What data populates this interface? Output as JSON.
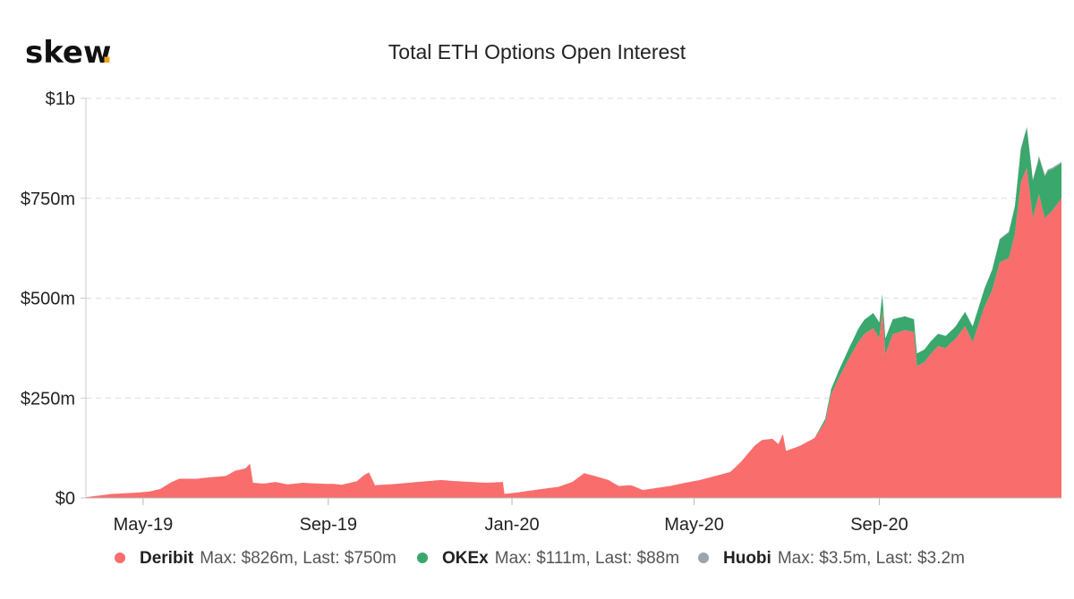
{
  "brand": {
    "name": "skew",
    "dot": ".",
    "dot_color": "#f0a020"
  },
  "chart_data": {
    "type": "area",
    "title": "Total ETH Options Open Interest",
    "xlabel": "",
    "ylabel": "",
    "y_unit": "USD millions",
    "ylim": [
      0,
      1000
    ],
    "grid": true,
    "legend_position": "bottom",
    "y_ticks": [
      {
        "value": 0,
        "label": "$0"
      },
      {
        "value": 250,
        "label": "$250m"
      },
      {
        "value": 500,
        "label": "$500m"
      },
      {
        "value": 750,
        "label": "$750m"
      },
      {
        "value": 1000,
        "label": "$1b"
      }
    ],
    "x_range": [
      "2019-03-24",
      "2020-12-31"
    ],
    "x_ticks": [
      {
        "date": "2019-05-01",
        "label": "May-19"
      },
      {
        "date": "2019-09-01",
        "label": "Sep-19"
      },
      {
        "date": "2020-01-01",
        "label": "Jan-20"
      },
      {
        "date": "2020-05-01",
        "label": "May-20"
      },
      {
        "date": "2020-09-01",
        "label": "Sep-20"
      }
    ],
    "series": [
      {
        "name": "Deribit",
        "color": "#f96d6d",
        "stats": "Max: $826m, Last: $750m",
        "points": [
          [
            "2019-03-24",
            2
          ],
          [
            "2019-04-10",
            10
          ],
          [
            "2019-04-25",
            13
          ],
          [
            "2019-05-05",
            16
          ],
          [
            "2019-05-12",
            22
          ],
          [
            "2019-05-20",
            40
          ],
          [
            "2019-05-25",
            48
          ],
          [
            "2019-06-05",
            48
          ],
          [
            "2019-06-15",
            52
          ],
          [
            "2019-06-25",
            55
          ],
          [
            "2019-07-01",
            68
          ],
          [
            "2019-07-08",
            74
          ],
          [
            "2019-07-11",
            86
          ],
          [
            "2019-07-13",
            38
          ],
          [
            "2019-07-20",
            36
          ],
          [
            "2019-07-28",
            40
          ],
          [
            "2019-08-05",
            34
          ],
          [
            "2019-08-15",
            38
          ],
          [
            "2019-08-25",
            36
          ],
          [
            "2019-09-05",
            35
          ],
          [
            "2019-09-10",
            33
          ],
          [
            "2019-09-20",
            42
          ],
          [
            "2019-09-25",
            58
          ],
          [
            "2019-09-28",
            64
          ],
          [
            "2019-10-02",
            32
          ],
          [
            "2019-10-15",
            35
          ],
          [
            "2019-10-30",
            40
          ],
          [
            "2019-11-15",
            45
          ],
          [
            "2019-11-25",
            42
          ],
          [
            "2019-12-05",
            40
          ],
          [
            "2019-12-15",
            38
          ],
          [
            "2019-12-26",
            40
          ],
          [
            "2019-12-27",
            10
          ],
          [
            "2020-01-05",
            14
          ],
          [
            "2020-01-20",
            22
          ],
          [
            "2020-02-01",
            28
          ],
          [
            "2020-02-10",
            40
          ],
          [
            "2020-02-18",
            62
          ],
          [
            "2020-02-25",
            55
          ],
          [
            "2020-03-05",
            45
          ],
          [
            "2020-03-12",
            30
          ],
          [
            "2020-03-20",
            32
          ],
          [
            "2020-03-28",
            20
          ],
          [
            "2020-04-15",
            30
          ],
          [
            "2020-04-25",
            38
          ],
          [
            "2020-05-05",
            45
          ],
          [
            "2020-05-15",
            55
          ],
          [
            "2020-05-25",
            65
          ],
          [
            "2020-06-01",
            90
          ],
          [
            "2020-06-10",
            130
          ],
          [
            "2020-06-15",
            145
          ],
          [
            "2020-06-22",
            148
          ],
          [
            "2020-06-26",
            135
          ],
          [
            "2020-06-29",
            160
          ],
          [
            "2020-07-01",
            118
          ],
          [
            "2020-07-10",
            130
          ],
          [
            "2020-07-20",
            150
          ],
          [
            "2020-07-27",
            190
          ],
          [
            "2020-07-31",
            260
          ],
          [
            "2020-08-05",
            300
          ],
          [
            "2020-08-12",
            350
          ],
          [
            "2020-08-18",
            390
          ],
          [
            "2020-08-22",
            410
          ],
          [
            "2020-08-28",
            425
          ],
          [
            "2020-09-01",
            400
          ],
          [
            "2020-09-03",
            470
          ],
          [
            "2020-09-05",
            360
          ],
          [
            "2020-09-10",
            410
          ],
          [
            "2020-09-18",
            420
          ],
          [
            "2020-09-24",
            415
          ],
          [
            "2020-09-26",
            330
          ],
          [
            "2020-10-01",
            340
          ],
          [
            "2020-10-05",
            360
          ],
          [
            "2020-10-10",
            380
          ],
          [
            "2020-10-15",
            375
          ],
          [
            "2020-10-22",
            400
          ],
          [
            "2020-10-28",
            430
          ],
          [
            "2020-11-02",
            390
          ],
          [
            "2020-11-10",
            480
          ],
          [
            "2020-11-15",
            520
          ],
          [
            "2020-11-20",
            590
          ],
          [
            "2020-11-26",
            600
          ],
          [
            "2020-11-30",
            660
          ],
          [
            "2020-12-04",
            790
          ],
          [
            "2020-12-08",
            826
          ],
          [
            "2020-12-12",
            700
          ],
          [
            "2020-12-16",
            760
          ],
          [
            "2020-12-20",
            700
          ],
          [
            "2020-12-25",
            720
          ],
          [
            "2020-12-31",
            750
          ]
        ]
      },
      {
        "name": "OKEx",
        "color": "#3aa76d",
        "stats": "Max: $111m, Last: $88m",
        "points": [
          [
            "2019-03-24",
            0
          ],
          [
            "2020-07-20",
            0
          ],
          [
            "2020-07-25",
            5
          ],
          [
            "2020-08-05",
            18
          ],
          [
            "2020-08-20",
            35
          ],
          [
            "2020-09-03",
            40
          ],
          [
            "2020-09-25",
            32
          ],
          [
            "2020-10-20",
            30
          ],
          [
            "2020-11-10",
            45
          ],
          [
            "2020-12-01",
            70
          ],
          [
            "2020-12-08",
            100
          ],
          [
            "2020-12-15",
            90
          ],
          [
            "2020-12-22",
            111
          ],
          [
            "2020-12-31",
            88
          ]
        ]
      },
      {
        "name": "Huobi",
        "color": "#9aa5ad",
        "stats": "Max: $3.5m, Last: $3.2m",
        "points": [
          [
            "2019-03-24",
            0
          ],
          [
            "2020-10-25",
            0
          ],
          [
            "2020-11-10",
            1
          ],
          [
            "2020-12-01",
            2.5
          ],
          [
            "2020-12-15",
            3.5
          ],
          [
            "2020-12-31",
            3.2
          ]
        ]
      }
    ]
  }
}
